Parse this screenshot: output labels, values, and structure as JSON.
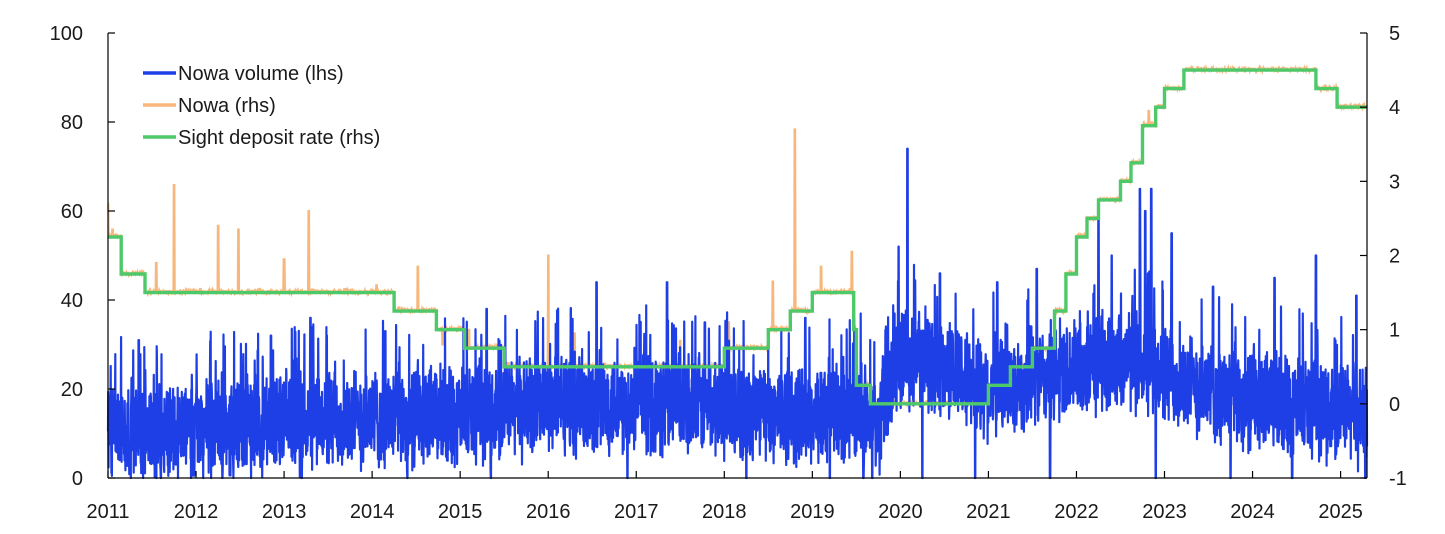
{
  "chart_data": {
    "type": "line",
    "title": "",
    "xlabel": "",
    "ylabel_left": "",
    "ylabel_right": "",
    "x_axis": {
      "tick_labels": [
        "2011",
        "2012",
        "2013",
        "2014",
        "2015",
        "2016",
        "2017",
        "2018",
        "2019",
        "2020",
        "2021",
        "2022",
        "2023",
        "2024",
        "2025"
      ],
      "xlim": [
        2011.0,
        2025.3
      ]
    },
    "y_left": {
      "ylim": [
        0,
        100
      ],
      "ticks": [
        0,
        20,
        40,
        60,
        80,
        100
      ]
    },
    "y_right": {
      "ylim": [
        -1,
        5
      ],
      "ticks": [
        -1,
        0,
        1,
        2,
        3,
        4,
        5
      ]
    },
    "legend": {
      "placement": "top-left",
      "entries": [
        {
          "label": "Nowa volume (lhs)",
          "series": "volume"
        },
        {
          "label": "Nowa (rhs)",
          "series": "nowa"
        },
        {
          "label": "Sight deposit rate (rhs)",
          "series": "policy"
        }
      ]
    },
    "colors": {
      "volume": "#1f3fe6",
      "nowa": "#f7b77c",
      "policy": "#4ec96a"
    },
    "series": [
      {
        "name": "Sight deposit rate (rhs)",
        "key": "policy",
        "axis": "right",
        "kind": "step",
        "steps": [
          {
            "from": 2011.0,
            "value": 2.25
          },
          {
            "from": 2011.15,
            "value": 1.75
          },
          {
            "from": 2011.42,
            "value": 1.5
          },
          {
            "from": 2014.25,
            "value": 1.25
          },
          {
            "from": 2014.73,
            "value": 1.0
          },
          {
            "from": 2015.05,
            "value": 0.75
          },
          {
            "from": 2015.5,
            "value": 0.5
          },
          {
            "from": 2018.0,
            "value": 0.75
          },
          {
            "from": 2018.5,
            "value": 1.0
          },
          {
            "from": 2018.75,
            "value": 1.25
          },
          {
            "from": 2019.0,
            "value": 1.5
          },
          {
            "from": 2019.47,
            "value": 1.0
          },
          {
            "from": 2019.5,
            "value": 0.25
          },
          {
            "from": 2019.66,
            "value": 0.0
          },
          {
            "from": 2021.0,
            "value": 0.25
          },
          {
            "from": 2021.25,
            "value": 0.5
          },
          {
            "from": 2021.5,
            "value": 0.75
          },
          {
            "from": 2021.75,
            "value": 1.25
          },
          {
            "from": 2021.88,
            "value": 1.75
          },
          {
            "from": 2022.0,
            "value": 2.25
          },
          {
            "from": 2022.12,
            "value": 2.5
          },
          {
            "from": 2022.25,
            "value": 2.75
          },
          {
            "from": 2022.5,
            "value": 3.0
          },
          {
            "from": 2022.62,
            "value": 3.25
          },
          {
            "from": 2022.75,
            "value": 3.75
          },
          {
            "from": 2022.9,
            "value": 4.0
          },
          {
            "from": 2023.0,
            "value": 4.25
          },
          {
            "from": 2023.22,
            "value": 4.5
          },
          {
            "from": 2024.72,
            "value": 4.25
          },
          {
            "from": 2024.96,
            "value": 4.0
          }
        ],
        "end": 2025.3
      },
      {
        "name": "Nowa (rhs)",
        "key": "nowa",
        "axis": "right",
        "kind": "daily",
        "spread": [
          0.08,
          0.05
        ],
        "spikes": [
          [
            2011.0,
            2.7
          ],
          [
            2011.05,
            2.35
          ],
          [
            2011.55,
            1.9
          ],
          [
            2011.75,
            2.95
          ],
          [
            2012.05,
            1.55
          ],
          [
            2012.25,
            2.4
          ],
          [
            2012.48,
            2.35
          ],
          [
            2012.72,
            1.55
          ],
          [
            2013.0,
            1.95
          ],
          [
            2013.28,
            2.6
          ],
          [
            2013.7,
            1.55
          ],
          [
            2014.05,
            1.6
          ],
          [
            2014.3,
            1.3
          ],
          [
            2014.52,
            1.85
          ],
          [
            2014.8,
            0.8
          ],
          [
            2015.1,
            1.0
          ],
          [
            2015.55,
            0.55
          ],
          [
            2016.0,
            2.0
          ],
          [
            2016.3,
            0.95
          ],
          [
            2017.1,
            0.6
          ],
          [
            2017.5,
            0.85
          ],
          [
            2018.05,
            1.1
          ],
          [
            2018.55,
            1.65
          ],
          [
            2018.8,
            3.7
          ],
          [
            2019.1,
            1.85
          ],
          [
            2019.45,
            2.05
          ],
          [
            2022.82,
            3.95
          ]
        ]
      },
      {
        "name": "Nowa volume (lhs)",
        "key": "volume",
        "axis": "left",
        "kind": "daily",
        "levels": [
          [
            2011.0,
            10
          ],
          [
            2011.8,
            11
          ],
          [
            2012.6,
            12
          ],
          [
            2013.5,
            13
          ],
          [
            2014.5,
            14
          ],
          [
            2015.0,
            14
          ],
          [
            2015.5,
            15
          ],
          [
            2016.0,
            17
          ],
          [
            2017.0,
            17
          ],
          [
            2018.0,
            16
          ],
          [
            2019.0,
            14
          ],
          [
            2019.55,
            16
          ],
          [
            2019.75,
            11
          ],
          [
            2019.98,
            28
          ],
          [
            2020.6,
            24
          ],
          [
            2021.0,
            20
          ],
          [
            2021.9,
            24
          ],
          [
            2022.6,
            27
          ],
          [
            2023.0,
            23
          ],
          [
            2023.6,
            19
          ],
          [
            2024.2,
            17
          ],
          [
            2025.3,
            14
          ]
        ],
        "amplitude": 10,
        "peaks": [
          [
            2020.08,
            74
          ],
          [
            2022.72,
            65
          ],
          [
            2022.85,
            65
          ],
          [
            2022.78,
            60
          ],
          [
            2022.25,
            58
          ],
          [
            2022.4,
            50
          ],
          [
            2023.08,
            55
          ],
          [
            2019.98,
            52
          ],
          [
            2024.72,
            50
          ],
          [
            2021.55,
            47
          ],
          [
            2016.55,
            44
          ],
          [
            2017.35,
            44
          ],
          [
            2015.3,
            38
          ],
          [
            2013.3,
            36
          ],
          [
            2018.92,
            36
          ],
          [
            2025.18,
            41
          ],
          [
            2012.85,
            32
          ],
          [
            2014.15,
            33
          ],
          [
            2017.78,
            35
          ],
          [
            2020.45,
            46
          ],
          [
            2023.55,
            43
          ],
          [
            2024.25,
            45
          ],
          [
            2021.1,
            44
          ],
          [
            2011.35,
            31
          ]
        ],
        "troughs": [
          2011.6,
          2012.3,
          2013.2,
          2014.4,
          2015.35,
          2016.9,
          2018.25,
          2019.2,
          2019.58,
          2019.68,
          2020.25,
          2020.85,
          2021.7,
          2022.9,
          2023.75,
          2024.45,
          2025.28
        ]
      }
    ]
  }
}
